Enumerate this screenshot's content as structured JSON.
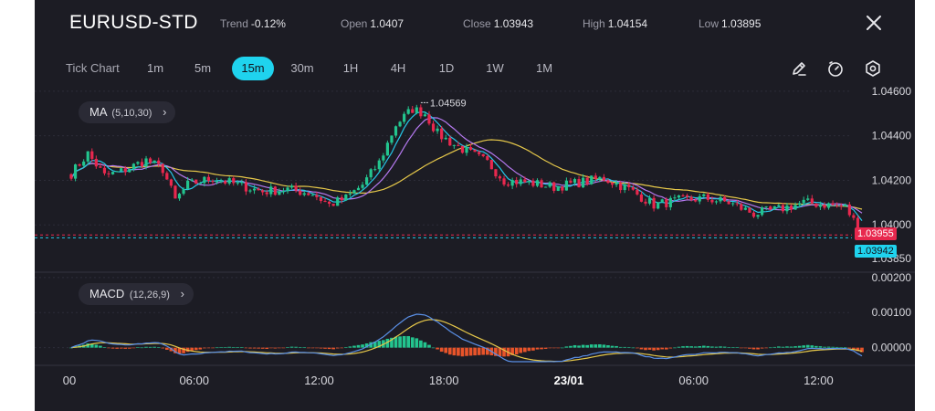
{
  "header": {
    "symbol": "EURUSD-STD",
    "trend_label": "Trend",
    "trend_value": "-0.12%",
    "open_label": "Open",
    "open_value": "1.0407",
    "close_label": "Close",
    "close_value": "1.03943",
    "high_label": "High",
    "high_value": "1.04154",
    "low_label": "Low",
    "low_value": "1.03895"
  },
  "toolbar": {
    "tick_chart": "Tick Chart",
    "timeframes": [
      "1m",
      "5m",
      "15m",
      "30m",
      "1H",
      "4H",
      "1D",
      "1W",
      "1M"
    ],
    "active_timeframe": "15m",
    "icons": [
      "draw-pencil-icon",
      "timer-icon",
      "settings-gear-icon"
    ]
  },
  "indicators": {
    "ma_label": "MA",
    "ma_params": "(5,10,30)",
    "macd_label": "MACD",
    "macd_params": "(12,26,9)"
  },
  "colors": {
    "background": "#1c1c24",
    "bull": "#23c48e",
    "bear": "#e8284e",
    "ma5": "#25c7e8",
    "ma10": "#b579f0",
    "ma30": "#e6c84a",
    "macd": "#5a8fe6",
    "signal": "#e6c84a",
    "hist_pos": "#23c48e",
    "hist_neg": "#e8542a",
    "active_tab": "#1fd3ee"
  },
  "chart_data": [
    {
      "type": "candlestick",
      "title": "EURUSD-STD 15m",
      "y_ticks": [
        "1.04600",
        "1.04400",
        "1.04200",
        "1.04000",
        "1.03850"
      ],
      "ylim": [
        1.038,
        1.0462
      ],
      "x_ticks": [
        "00",
        "06:00",
        "12:00",
        "18:00",
        "23/01",
        "06:00",
        "12:00"
      ],
      "annotations": {
        "high_marker": "1.04569",
        "price_tag_red": "1.03955",
        "price_tag_cyan": "1.03942"
      },
      "reference_lines": [
        1.03955,
        1.03942
      ],
      "moving_averages": [
        "MA5",
        "MA10",
        "MA30"
      ],
      "anchors": [
        [
          0,
          1.0423
        ],
        [
          4,
          1.0432
        ],
        [
          8,
          1.0422
        ],
        [
          12,
          1.0424
        ],
        [
          18,
          1.0429
        ],
        [
          22,
          1.0425
        ],
        [
          25,
          1.0411
        ],
        [
          28,
          1.0418
        ],
        [
          34,
          1.0421
        ],
        [
          40,
          1.0418
        ],
        [
          46,
          1.0415
        ],
        [
          52,
          1.0416
        ],
        [
          58,
          1.0414
        ],
        [
          62,
          1.0409
        ],
        [
          66,
          1.0412
        ],
        [
          70,
          1.0418
        ],
        [
          74,
          1.0428
        ],
        [
          78,
          1.0445
        ],
        [
          82,
          1.0452
        ],
        [
          85,
          1.045
        ],
        [
          88,
          1.0441
        ],
        [
          92,
          1.0436
        ],
        [
          96,
          1.0432
        ],
        [
          100,
          1.0428
        ],
        [
          104,
          1.042
        ],
        [
          110,
          1.0419
        ],
        [
          116,
          1.0417
        ],
        [
          122,
          1.0419
        ],
        [
          128,
          1.0421
        ],
        [
          134,
          1.0416
        ],
        [
          140,
          1.0409
        ],
        [
          146,
          1.0411
        ],
        [
          152,
          1.0412
        ],
        [
          158,
          1.041
        ],
        [
          164,
          1.0405
        ],
        [
          170,
          1.0407
        ],
        [
          176,
          1.041
        ],
        [
          182,
          1.0409
        ],
        [
          186,
          1.0408
        ],
        [
          190,
          1.0396
        ]
      ],
      "candle_count": 191
    },
    {
      "type": "macd",
      "title": "MACD (12,26,9)",
      "y_ticks": [
        "0.00200",
        "0.00100",
        "0.00000"
      ],
      "ylim": [
        -0.0004,
        0.0021
      ],
      "series": [
        "MACD",
        "Signal",
        "Histogram"
      ],
      "x_ticks": [
        "00",
        "06:00",
        "12:00",
        "18:00",
        "23/01",
        "06:00",
        "12:00"
      ]
    }
  ]
}
